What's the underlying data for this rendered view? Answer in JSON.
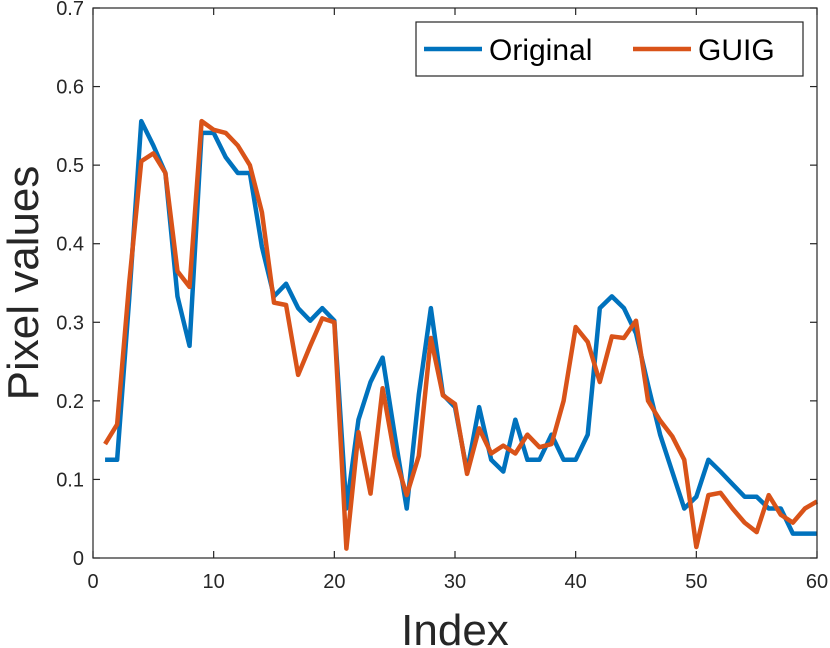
{
  "chart_data": {
    "type": "line",
    "xlabel": "Index",
    "ylabel": "Pixel values",
    "xlim": [
      0,
      60
    ],
    "ylim": [
      0,
      0.7
    ],
    "xticks": [
      "0",
      "10",
      "20",
      "30",
      "40",
      "50",
      "60"
    ],
    "yticks": [
      "0",
      "0.1",
      "0.2",
      "0.3",
      "0.4",
      "0.5",
      "0.6",
      "0.7"
    ],
    "legend_position": "top-right",
    "grid": false,
    "x": [
      1,
      2,
      3,
      4,
      5,
      6,
      7,
      8,
      9,
      10,
      11,
      12,
      13,
      14,
      15,
      16,
      17,
      18,
      19,
      20,
      21,
      22,
      23,
      24,
      25,
      26,
      27,
      28,
      29,
      30,
      31,
      32,
      33,
      34,
      35,
      36,
      37,
      38,
      39,
      40,
      41,
      42,
      43,
      44,
      45,
      46,
      47,
      48,
      49,
      50,
      51,
      52,
      53,
      54,
      55,
      56,
      57,
      58,
      59,
      60
    ],
    "series": [
      {
        "name": "Original",
        "color": "#0072BD",
        "values": [
          0.125,
          0.125,
          0.33,
          0.556,
          0.525,
          0.49,
          0.333,
          0.27,
          0.541,
          0.541,
          0.51,
          0.49,
          0.49,
          0.396,
          0.333,
          0.349,
          0.318,
          0.302,
          0.318,
          0.302,
          0.063,
          0.176,
          0.224,
          0.255,
          0.157,
          0.063,
          0.208,
          0.318,
          0.208,
          0.192,
          0.11,
          0.192,
          0.125,
          0.11,
          0.176,
          0.125,
          0.125,
          0.157,
          0.125,
          0.125,
          0.157,
          0.318,
          0.333,
          0.318,
          0.286,
          0.22,
          0.157,
          0.11,
          0.063,
          0.078,
          0.125,
          0.11,
          0.094,
          0.078,
          0.078,
          0.063,
          0.063,
          0.031,
          0.031,
          0.031
        ]
      },
      {
        "name": "GUIG",
        "color": "#D95319",
        "values": [
          0.145,
          0.17,
          0.35,
          0.505,
          0.515,
          0.49,
          0.365,
          0.345,
          0.556,
          0.545,
          0.541,
          0.525,
          0.5,
          0.44,
          0.325,
          0.322,
          0.233,
          0.27,
          0.305,
          0.3,
          0.012,
          0.16,
          0.082,
          0.216,
          0.13,
          0.08,
          0.13,
          0.28,
          0.207,
          0.196,
          0.107,
          0.165,
          0.133,
          0.143,
          0.133,
          0.157,
          0.141,
          0.145,
          0.2,
          0.294,
          0.275,
          0.224,
          0.282,
          0.28,
          0.302,
          0.2,
          0.175,
          0.155,
          0.125,
          0.014,
          0.08,
          0.083,
          0.063,
          0.045,
          0.033,
          0.08,
          0.055,
          0.045,
          0.063,
          0.072
        ]
      }
    ]
  }
}
